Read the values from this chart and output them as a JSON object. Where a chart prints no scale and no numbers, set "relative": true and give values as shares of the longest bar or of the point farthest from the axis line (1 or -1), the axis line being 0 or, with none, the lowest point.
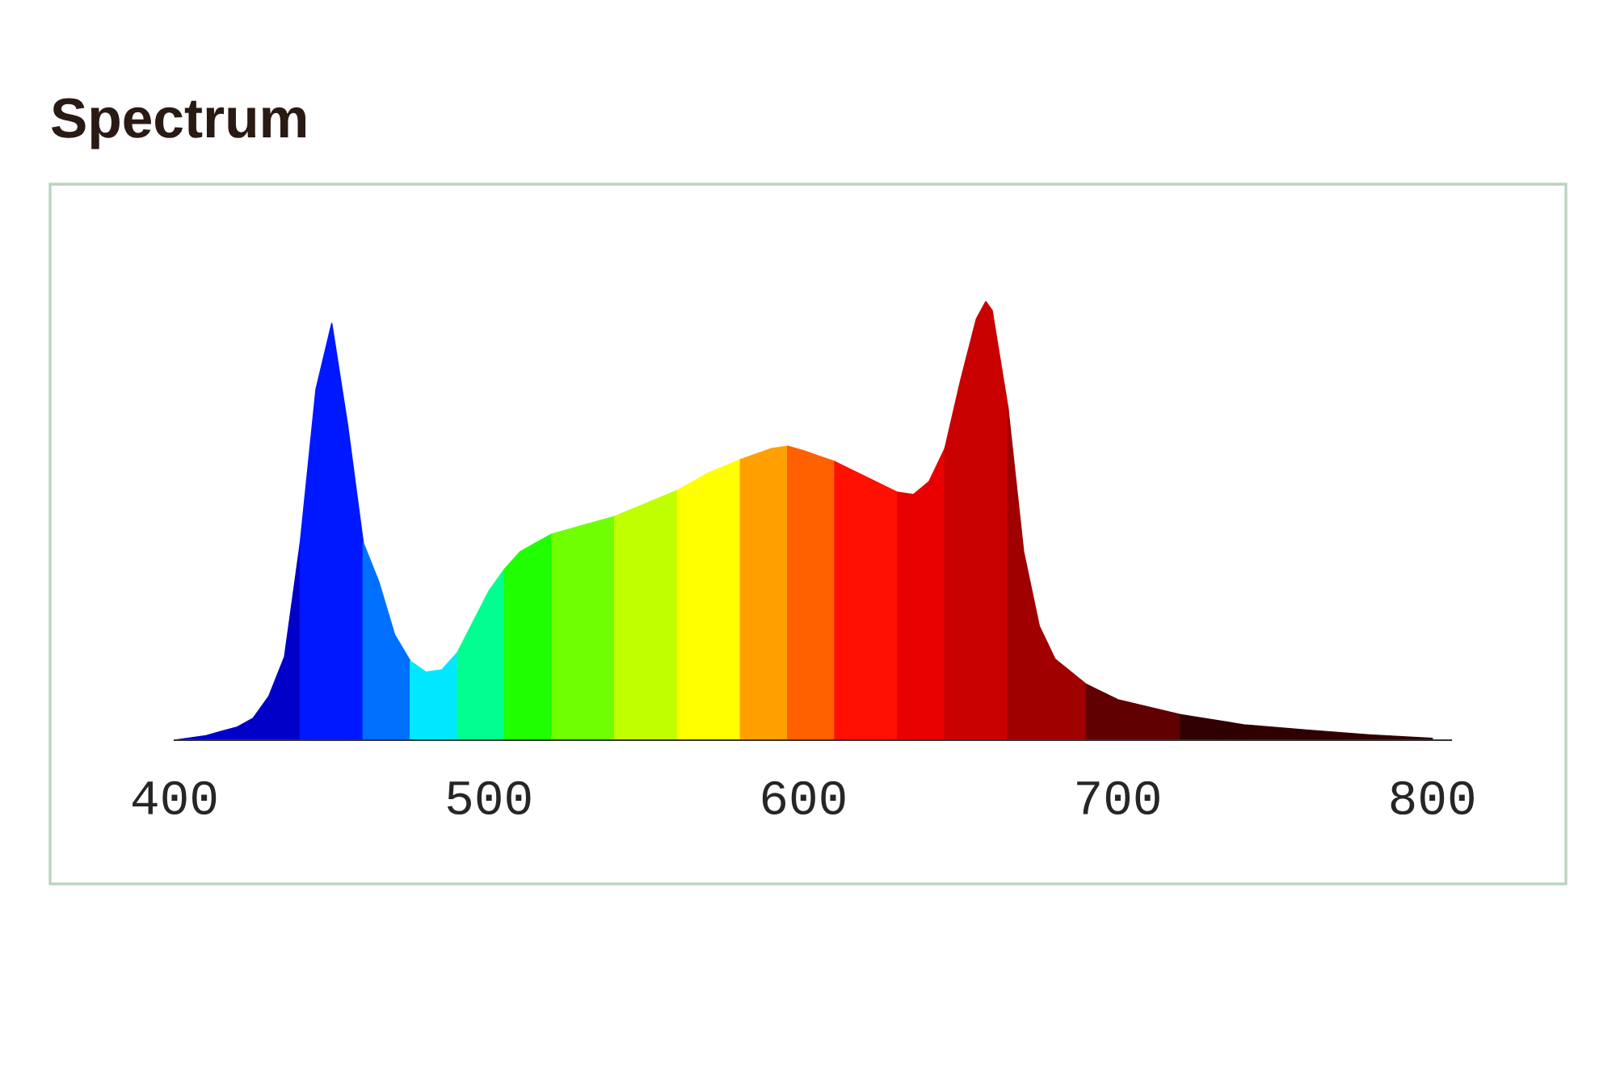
{
  "chart_data": {
    "type": "area",
    "title": "Spectrum",
    "relative": true,
    "series": [
      {
        "color": "#0000c8",
        "x": [
          400,
          405,
          410,
          415,
          420,
          425,
          430,
          435,
          440
        ],
        "values": [
          0,
          0.005,
          0.01,
          0.02,
          0.03,
          0.05,
          0.1,
          0.19,
          0.45
        ]
      },
      {
        "color": "#0018ff",
        "x": [
          440,
          445,
          450,
          455,
          460
        ],
        "values": [
          0.45,
          0.8,
          0.95,
          0.72,
          0.45
        ]
      },
      {
        "color": "#0070ff",
        "x": [
          460,
          465,
          470,
          475
        ],
        "values": [
          0.45,
          0.36,
          0.24,
          0.18
        ]
      },
      {
        "color": "#00e8ff",
        "x": [
          475,
          480,
          485,
          490
        ],
        "values": [
          0.18,
          0.155,
          0.16,
          0.2
        ]
      },
      {
        "color": "#00ff90",
        "x": [
          490,
          495,
          500,
          505
        ],
        "values": [
          0.2,
          0.27,
          0.34,
          0.39
        ]
      },
      {
        "color": "#20ff00",
        "x": [
          505,
          510,
          515,
          520
        ],
        "values": [
          0.39,
          0.43,
          0.45,
          0.47
        ]
      },
      {
        "color": "#70ff00",
        "x": [
          520,
          530,
          540
        ],
        "values": [
          0.47,
          0.49,
          0.51
        ]
      },
      {
        "color": "#c0ff00",
        "x": [
          540,
          550,
          560
        ],
        "values": [
          0.51,
          0.54,
          0.57
        ]
      },
      {
        "color": "#ffff00",
        "x": [
          560,
          570,
          580
        ],
        "values": [
          0.57,
          0.61,
          0.64
        ]
      },
      {
        "color": "#ffa000",
        "x": [
          580,
          590,
          595
        ],
        "values": [
          0.64,
          0.665,
          0.67
        ]
      },
      {
        "color": "#ff6000",
        "x": [
          595,
          600,
          610
        ],
        "values": [
          0.67,
          0.66,
          0.635
        ]
      },
      {
        "color": "#ff1000",
        "x": [
          610,
          620,
          630
        ],
        "values": [
          0.635,
          0.6,
          0.565
        ]
      },
      {
        "color": "#e80000",
        "x": [
          630,
          635,
          640,
          645
        ],
        "values": [
          0.565,
          0.56,
          0.59,
          0.665
        ]
      },
      {
        "color": "#c80000",
        "x": [
          645,
          650,
          655,
          658,
          660,
          665
        ],
        "values": [
          0.665,
          0.82,
          0.96,
          1,
          0.98,
          0.76
        ]
      },
      {
        "color": "#a00000",
        "x": [
          665,
          670,
          675,
          680,
          690
        ],
        "values": [
          0.76,
          0.43,
          0.26,
          0.185,
          0.127
        ]
      },
      {
        "color": "#600000",
        "x": [
          690,
          700,
          720
        ],
        "values": [
          0.127,
          0.092,
          0.058
        ]
      },
      {
        "color": "#300000",
        "x": [
          720,
          740,
          760,
          780,
          800
        ],
        "values": [
          0.058,
          0.035,
          0.023,
          0.012,
          0.004
        ]
      }
    ],
    "xlim": [
      400,
      806
    ],
    "xticks": [
      400,
      500,
      600,
      700,
      800
    ],
    "tick_labels": "x"
  }
}
